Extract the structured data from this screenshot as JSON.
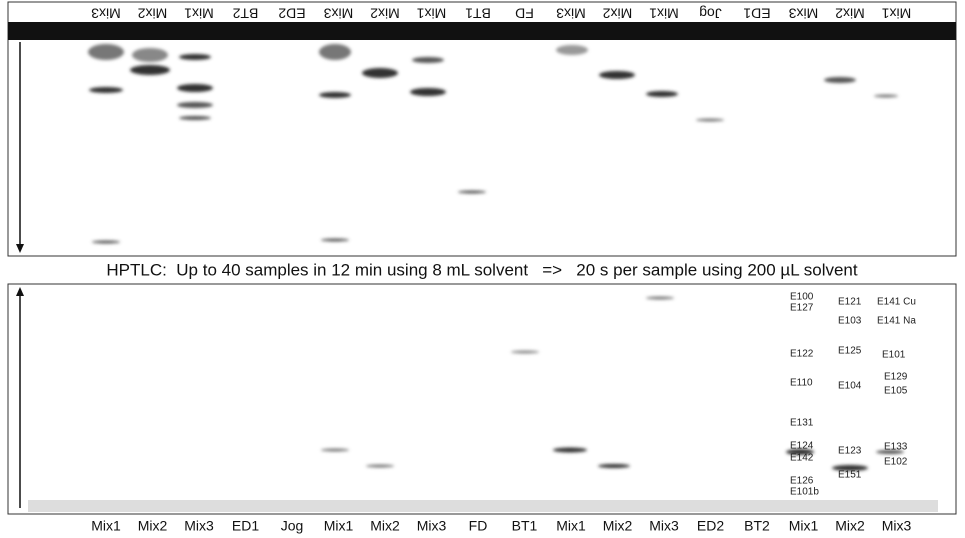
{
  "top_plate": {
    "lanes": [
      "Mix3",
      "Mix2",
      "Mix1",
      "BT2",
      "ED2",
      "Mix3",
      "Mix2",
      "Mix1",
      "BT1",
      "FD",
      "Mix3",
      "Mix2",
      "Mix1",
      "Jog",
      "ED1",
      "Mix3",
      "Mix2",
      "Mix1"
    ]
  },
  "caption": "HPTLC:  Up to 40 samples in 12 min using 8 mL solvent   =>   20 s per sample using 200 µL solvent",
  "bottom_plate": {
    "lanes": [
      "Mix1",
      "Mix2",
      "Mix3",
      "ED1",
      "Jog",
      "Mix1",
      "Mix2",
      "Mix3",
      "FD",
      "BT1",
      "Mix1",
      "Mix2",
      "Mix3",
      "ED2",
      "BT2",
      "Mix1",
      "Mix2",
      "Mix3"
    ],
    "standards": [
      "E100",
      "E127",
      "E121",
      "E141 Cu",
      "E103",
      "E141 Na",
      "E122",
      "E125",
      "E101",
      "E110",
      "E104",
      "E129",
      "E105",
      "E131",
      "E124",
      "E123",
      "E133",
      "E142",
      "E102",
      "E126",
      "E151",
      "E101b"
    ]
  }
}
